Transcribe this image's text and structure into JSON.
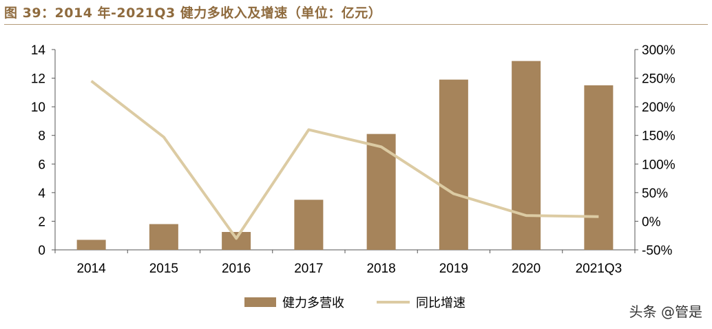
{
  "figure_title": "图 39：2014 年-2021Q3 健力多收入及增速（单位：亿元）",
  "watermark": "头条 @管是",
  "colors": {
    "bar": "#a6845b",
    "line": "#dccba3",
    "title": "#8f6b3e",
    "axis": "#555555"
  },
  "chart_data": {
    "type": "bar",
    "categories": [
      "2014",
      "2015",
      "2016",
      "2017",
      "2018",
      "2019",
      "2020",
      "2021Q3"
    ],
    "series": [
      {
        "name": "健力多营收",
        "type": "bar",
        "axis": "left",
        "values": [
          0.7,
          1.8,
          1.25,
          3.5,
          8.1,
          11.9,
          13.2,
          11.5
        ]
      },
      {
        "name": "同比增速",
        "type": "line",
        "axis": "right",
        "values": [
          245,
          147,
          -30,
          160,
          130,
          48,
          10,
          8
        ]
      }
    ],
    "y_left": {
      "min": 0,
      "max": 14,
      "ticks": [
        0,
        2,
        4,
        6,
        8,
        10,
        12,
        14
      ]
    },
    "y_right": {
      "min": -50,
      "max": 300,
      "ticks": [
        "-50%",
        "0%",
        "50%",
        "100%",
        "150%",
        "200%",
        "250%",
        "300%"
      ],
      "tick_values": [
        -50,
        0,
        50,
        100,
        150,
        200,
        250,
        300
      ]
    },
    "legend_position": "bottom-center",
    "grid": false
  }
}
